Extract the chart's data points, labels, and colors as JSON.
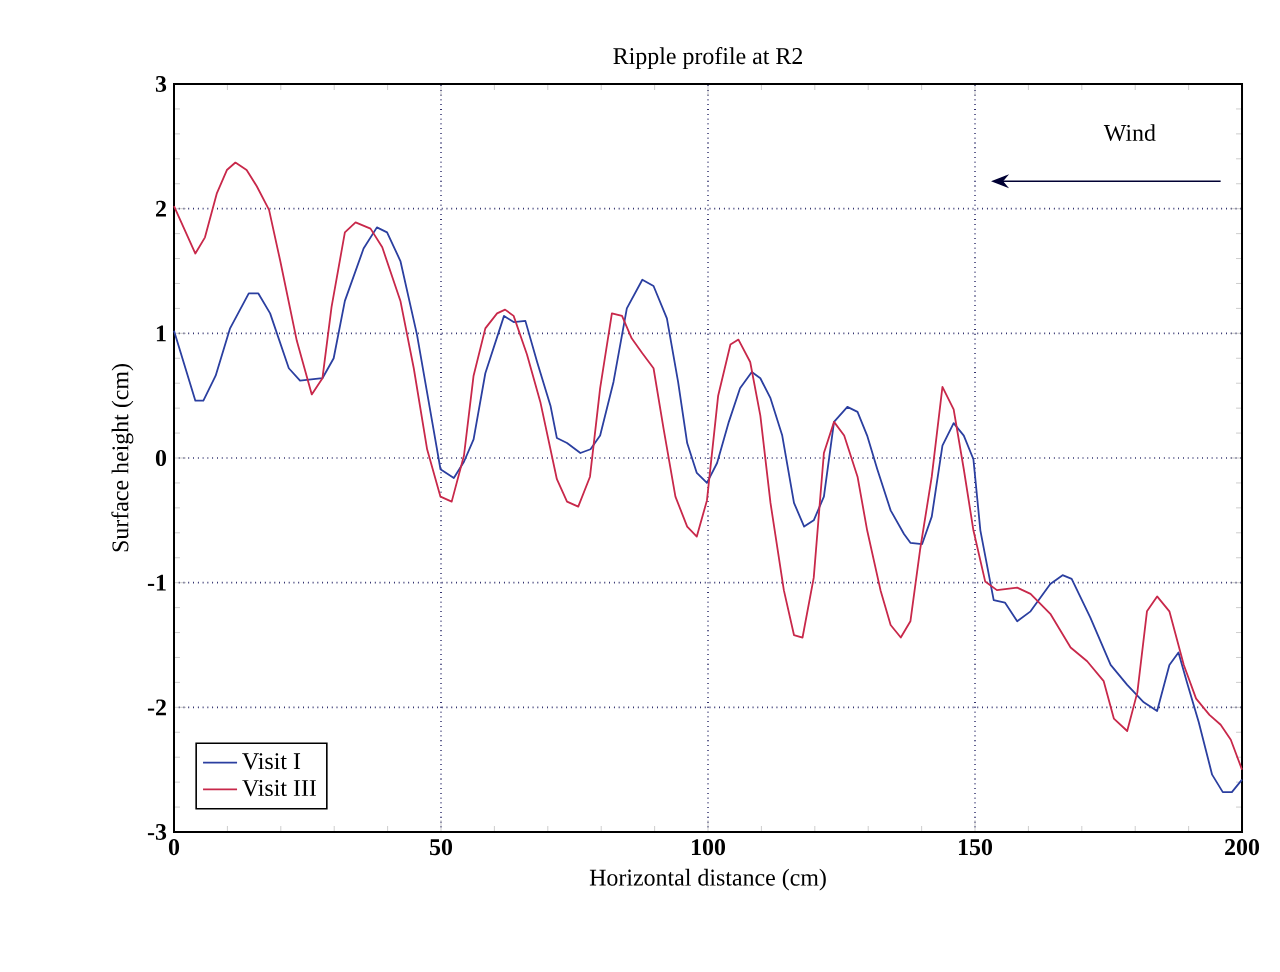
{
  "chart_data": {
    "type": "line",
    "title": "Ripple profile at R2",
    "xlabel": "Horizontal distance (cm)",
    "ylabel": "Surface height (cm)",
    "annotations": [
      "Wind"
    ],
    "xlim": [
      0,
      200
    ],
    "ylim": [
      -3,
      3
    ],
    "xticks": [
      0,
      50,
      100,
      150,
      200
    ],
    "yticks": [
      -3,
      -2,
      -1,
      0,
      1,
      2,
      3
    ],
    "grid": true,
    "legend": "bottom left",
    "marker": "none",
    "line_style": "solid",
    "series": [
      {
        "name": "Visit I",
        "color": "#2b3fa0",
        "x": [
          0,
          4,
          5.5,
          7.8,
          10.5,
          14,
          15.8,
          18,
          21.5,
          23.6,
          27.8,
          29.9,
          32,
          35.5,
          38,
          39.9,
          42.4,
          45.5,
          48.6,
          49.9,
          52.4,
          54.3,
          56.1,
          58.3,
          61.8,
          63.6,
          65.8,
          68,
          70.5,
          71.7,
          73.6,
          76.1,
          78,
          79.8,
          82.3,
          84.8,
          87.7,
          89.8,
          92.3,
          94.4,
          96.1,
          97.9,
          99.8,
          101.7,
          103.9,
          106,
          108.2,
          109.8,
          111.7,
          113.9,
          116.1,
          118,
          119.8,
          121.7,
          123.6,
          126.1,
          128,
          129.8,
          131.7,
          134.2,
          136.7,
          137.9,
          140.1,
          141.9,
          143.9,
          146,
          147.9,
          149.7,
          151,
          153.5,
          155.6,
          157.9,
          160.4,
          164.1,
          166.4,
          168.1,
          171.6,
          175.4,
          178.5,
          181.6,
          184.1,
          186.4,
          188.1,
          189.7,
          191.9,
          194.4,
          196.4,
          198.1,
          200
        ],
        "values": [
          1.02,
          0.46,
          0.46,
          0.66,
          1.04,
          1.32,
          1.32,
          1.16,
          0.72,
          0.62,
          0.64,
          0.8,
          1.26,
          1.68,
          1.85,
          1.81,
          1.58,
          0.99,
          0.23,
          -0.09,
          -0.16,
          -0.03,
          0.15,
          0.68,
          1.14,
          1.09,
          1.1,
          0.77,
          0.42,
          0.16,
          0.12,
          0.04,
          0.07,
          0.18,
          0.61,
          1.2,
          1.43,
          1.38,
          1.12,
          0.61,
          0.12,
          -0.12,
          -0.2,
          -0.04,
          0.29,
          0.56,
          0.69,
          0.64,
          0.48,
          0.18,
          -0.36,
          -0.55,
          -0.5,
          -0.31,
          0.29,
          0.41,
          0.37,
          0.18,
          -0.09,
          -0.42,
          -0.61,
          -0.68,
          -0.69,
          -0.47,
          0.1,
          0.28,
          0.18,
          -0.01,
          -0.58,
          -1.14,
          -1.16,
          -1.31,
          -1.23,
          -1.01,
          -0.94,
          -0.97,
          -1.28,
          -1.66,
          -1.82,
          -1.96,
          -2.03,
          -1.66,
          -1.56,
          -1.8,
          -2.12,
          -2.54,
          -2.68,
          -2.68,
          -2.58
        ]
      },
      {
        "name": "Visit III",
        "color": "#c8284a",
        "x": [
          0,
          4,
          5.8,
          8,
          9.9,
          11.5,
          13.6,
          15.5,
          17.8,
          19.9,
          23,
          25.8,
          27.8,
          29.5,
          32,
          34,
          36.8,
          39,
          42.4,
          44.9,
          47.4,
          49.9,
          52,
          54.3,
          56.1,
          58.3,
          60.5,
          62,
          63.6,
          66.1,
          68.6,
          71.7,
          73.6,
          75.7,
          77.9,
          79.8,
          82,
          83.9,
          85.7,
          87.7,
          89.8,
          91.7,
          93.9,
          96.1,
          97.9,
          99.8,
          101.9,
          104.2,
          105.7,
          107.9,
          109.8,
          111.7,
          114.2,
          116.1,
          117.7,
          119.8,
          121.7,
          123.6,
          125.5,
          128,
          129.8,
          132.3,
          134.2,
          136.1,
          137.9,
          139.7,
          141.9,
          143.9,
          146,
          147.9,
          149.7,
          151.9,
          154.1,
          157.9,
          160.4,
          164.1,
          167.9,
          171,
          174.1,
          176,
          178.5,
          180.4,
          182.2,
          184.1,
          186.4,
          189.1,
          191.4,
          193.9,
          196,
          197.9,
          200
        ],
        "values": [
          2.02,
          1.64,
          1.77,
          2.12,
          2.31,
          2.37,
          2.31,
          2.18,
          1.99,
          1.58,
          0.94,
          0.51,
          0.64,
          1.21,
          1.81,
          1.89,
          1.84,
          1.69,
          1.26,
          0.72,
          0.07,
          -0.31,
          -0.35,
          0.02,
          0.66,
          1.04,
          1.16,
          1.19,
          1.14,
          0.83,
          0.45,
          -0.17,
          -0.35,
          -0.39,
          -0.15,
          0.56,
          1.16,
          1.14,
          0.96,
          0.84,
          0.72,
          0.23,
          -0.31,
          -0.55,
          -0.63,
          -0.34,
          0.5,
          0.91,
          0.95,
          0.77,
          0.34,
          -0.36,
          -1.06,
          -1.42,
          -1.44,
          -0.96,
          0.04,
          0.29,
          0.18,
          -0.15,
          -0.58,
          -1.06,
          -1.34,
          -1.44,
          -1.31,
          -0.74,
          -0.15,
          0.57,
          0.39,
          -0.09,
          -0.58,
          -0.99,
          -1.06,
          -1.04,
          -1.09,
          -1.25,
          -1.52,
          -1.63,
          -1.79,
          -2.09,
          -2.19,
          -1.88,
          -1.23,
          -1.11,
          -1.23,
          -1.66,
          -1.93,
          -2.06,
          -2.14,
          -2.26,
          -2.5
        ]
      }
    ]
  }
}
